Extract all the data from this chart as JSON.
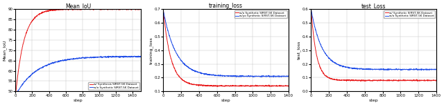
{
  "plot1": {
    "title": "Mean_IoU",
    "xlabel": "step",
    "ylabel": "Mean_IoU",
    "xlim": [
      0,
      1500
    ],
    "ylim": [
      50,
      90
    ],
    "yticks": [
      50,
      55,
      60,
      65,
      70,
      75,
      80,
      85,
      90
    ],
    "xticks": [
      0,
      200,
      400,
      600,
      800,
      1000,
      1200,
      1400
    ],
    "legend1": "w/ Synthesis SIRST-5K Dataset",
    "legend2": "w/o Synthetic SIRST-5K Dataset",
    "color1": "#e8191a",
    "color2": "#1f4de8"
  },
  "plot2": {
    "title": "training_loss",
    "xlabel": "step",
    "ylabel": "training_loss",
    "xlim": [
      0,
      1400
    ],
    "ylim": [
      0.1,
      0.7
    ],
    "yticks": [
      0.1,
      0.2,
      0.3,
      0.4,
      0.5,
      0.6,
      0.7
    ],
    "xticks": [
      0,
      200,
      400,
      600,
      800,
      1000,
      1200,
      1400
    ],
    "legend1": "w/o Synthetic SIRST-5K Dataset",
    "legend2": "w/yo Synthetic SIRST-5K Dataset",
    "color1": "#e8191a",
    "color2": "#1f4de8"
  },
  "plot3": {
    "title": "test_Loss",
    "xlabel": "step",
    "ylabel": "test_loss",
    "xlim": [
      0,
      1400
    ],
    "ylim": [
      0.0,
      0.6
    ],
    "yticks": [
      0.0,
      0.1,
      0.2,
      0.3,
      0.4,
      0.5,
      0.6
    ],
    "xticks": [
      0,
      200,
      400,
      600,
      800,
      1000,
      1200,
      1400
    ],
    "legend1": "w/ Synthetic SIRST-5K Dataset",
    "legend2": "w/o Synthetic SIRST-5K Dataset",
    "color1": "#e8191a",
    "color2": "#1f4de8"
  }
}
